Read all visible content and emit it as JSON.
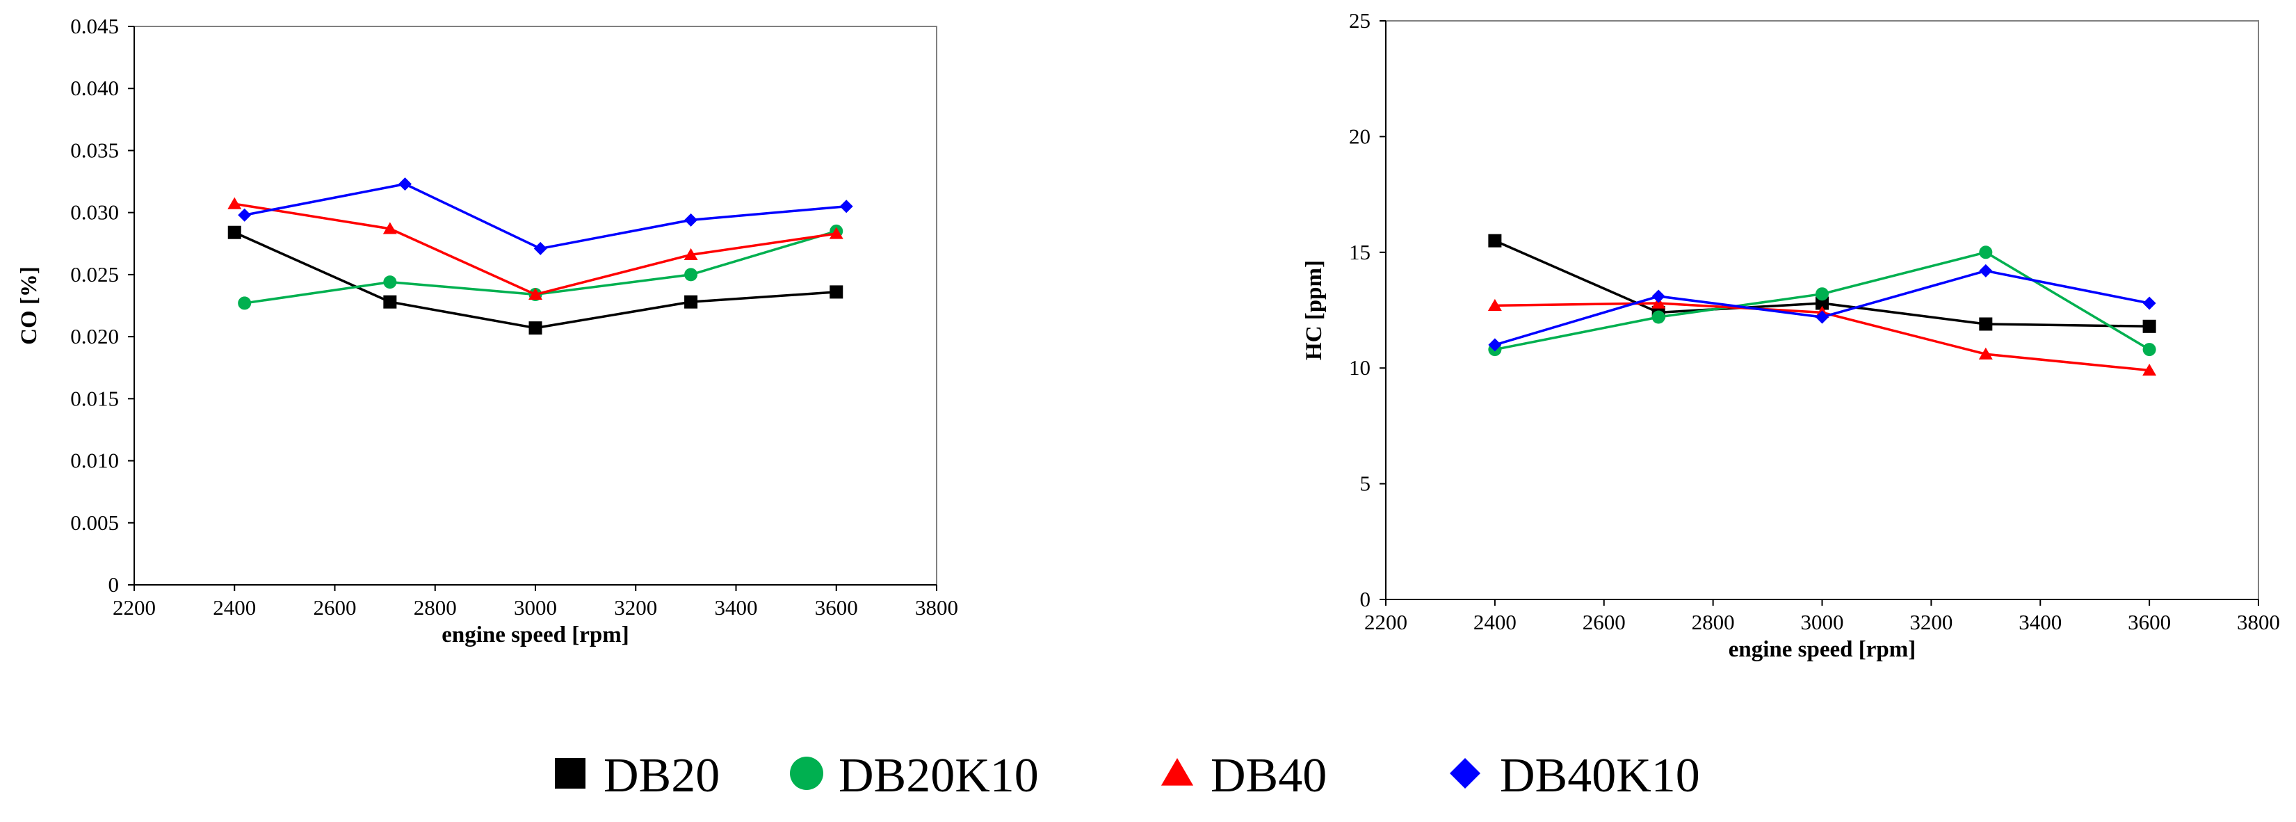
{
  "chart_data": [
    {
      "type": "line",
      "id": "co",
      "title": "",
      "xlabel": "engine speed [rpm]",
      "ylabel": "CO [%]",
      "xlim": [
        2200,
        3800
      ],
      "ylim": [
        0,
        0.045
      ],
      "xticks": [
        2200,
        2400,
        2600,
        2800,
        3000,
        3200,
        3400,
        3600,
        3800
      ],
      "yticks": [
        0,
        0.005,
        0.01,
        0.015,
        0.02,
        0.025,
        0.03,
        0.035,
        0.04,
        0.045
      ],
      "xtick_labels": [
        "2200",
        "2400",
        "2600",
        "2800",
        "3000",
        "3200",
        "3400",
        "3600",
        "3800"
      ],
      "ytick_labels": [
        "0",
        "0.005",
        "0.010",
        "0.015",
        "0.020",
        "0.025",
        "0.030",
        "0.035",
        "0.040",
        "0.045"
      ],
      "grid": false,
      "series": [
        {
          "name": "DB20",
          "x": [
            2400,
            2710,
            3000,
            3310,
            3600
          ],
          "y": [
            0.0284,
            0.0228,
            0.0207,
            0.0228,
            0.0236
          ]
        },
        {
          "name": "DB20K10",
          "x": [
            2420,
            2710,
            3000,
            3310,
            3600
          ],
          "y": [
            0.0227,
            0.0244,
            0.0234,
            0.025,
            0.0285
          ]
        },
        {
          "name": "DB40",
          "x": [
            2400,
            2710,
            3000,
            3310,
            3600
          ],
          "y": [
            0.0307,
            0.0287,
            0.0234,
            0.0266,
            0.0283
          ]
        },
        {
          "name": "DB40K10",
          "x": [
            2420,
            2740,
            3010,
            3310,
            3620
          ],
          "y": [
            0.0298,
            0.0323,
            0.0271,
            0.0294,
            0.0305
          ]
        }
      ]
    },
    {
      "type": "line",
      "id": "hc",
      "title": "",
      "xlabel": "engine speed [rpm]",
      "ylabel": "HC [ppm]",
      "xlim": [
        2200,
        3800
      ],
      "ylim": [
        0,
        25
      ],
      "xticks": [
        2200,
        2400,
        2600,
        2800,
        3000,
        3200,
        3400,
        3600,
        3800
      ],
      "yticks": [
        0,
        5,
        10,
        15,
        20,
        25
      ],
      "xtick_labels": [
        "2200",
        "2400",
        "2600",
        "2800",
        "3000",
        "3200",
        "3400",
        "3600",
        "3800"
      ],
      "ytick_labels": [
        "0",
        "5",
        "10",
        "15",
        "20",
        "25"
      ],
      "grid": false,
      "series": [
        {
          "name": "DB20",
          "x": [
            2400,
            2700,
            3000,
            3300,
            3600
          ],
          "y": [
            15.5,
            12.4,
            12.8,
            11.9,
            11.8
          ]
        },
        {
          "name": "DB20K10",
          "x": [
            2400,
            2700,
            3000,
            3300,
            3600
          ],
          "y": [
            10.8,
            12.2,
            13.2,
            15.0,
            10.8
          ]
        },
        {
          "name": "DB40",
          "x": [
            2400,
            2700,
            3000,
            3300,
            3600
          ],
          "y": [
            12.7,
            12.8,
            12.4,
            10.6,
            9.9
          ]
        },
        {
          "name": "DB40K10",
          "x": [
            2400,
            2700,
            3000,
            3300,
            3600
          ],
          "y": [
            11.0,
            13.1,
            12.2,
            14.2,
            12.8
          ]
        }
      ]
    }
  ],
  "legend": {
    "placement": "bottom-center",
    "items": [
      {
        "name": "DB20",
        "label": "DB20",
        "color": "#000000",
        "marker": "square"
      },
      {
        "name": "DB20K10",
        "label": "DB20K10",
        "color": "#00B050",
        "marker": "circle"
      },
      {
        "name": "DB40",
        "label": "DB40",
        "color": "#FF0000",
        "marker": "triangle"
      },
      {
        "name": "DB40K10",
        "label": "DB40K10",
        "color": "#0000FF",
        "marker": "diamond"
      }
    ]
  }
}
